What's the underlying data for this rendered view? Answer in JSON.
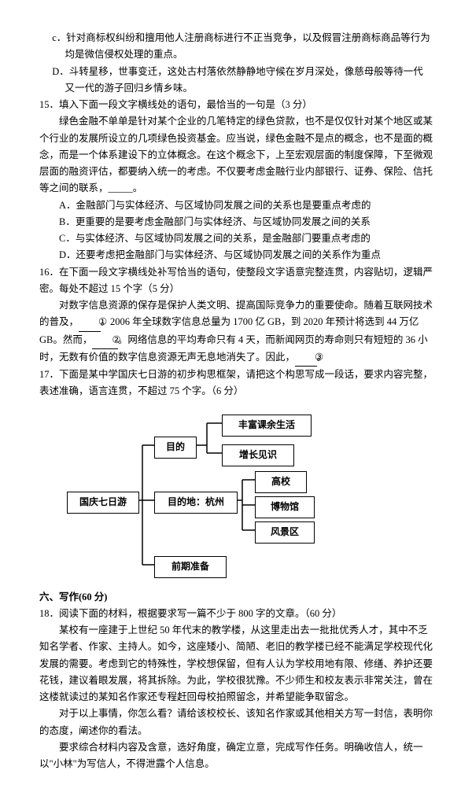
{
  "q14": {
    "c": "c．针对商标权纠纷和擅用他人注册商标进行不正当竞争，以及假冒注册商标商品等行为均是微信侵权处理的重点。",
    "d": "D．斗转星移，世事变迁，这处古村落依然静静地守候在岁月深处，像慈母般等待一代又一代的游子回归乡情乡味。"
  },
  "q15": {
    "stem": "15．填入下面一段文字横线处的语句，最恰当的一句是（3 分）",
    "para": "绿色金融不单单是针对某个企业的几笔特定的绿色贷款，也不是仅仅针对某个地区或某个行业的发展所设立的几项绿色投资基金。应当说，绿色金融不是点的概念，也不是面的概念，而是一个体系建设下的立体概念。在这个概念下，上至宏观层面的制度保障，下至微观层面的融资评估，都要纳入统一的考虑。不仅要考虑金融行业内部银行、证券、保险、信托等之间的联系，_____。",
    "a": "A．金融部门与实体经济、与区域协同发展之间的关系也是要重点考虑的",
    "b": "B．更重要的是要考虑金融部门与实体经济、与区域协同发展之间的关系",
    "c": "C．与实体经济、与区域协同发展之间的关系，是金融部门要重点考虑的",
    "d": "D．还要考虑把金融部门与实体经济、与区域协同发展之间的关系作为重点"
  },
  "q16": {
    "stem": "16．在下面一段文字横线处补写恰当的语句，使整段文字语意完整连贯，内容贴切，逻辑严密。每处不超过 15 个字（5 分）",
    "p1a": "对数字信息资源的保存是保护人类文明、提高国际竞争力的重要使命。随着互联网技术的普及，",
    "p1circ1": "①",
    "p1b": "。2006 年全球数字信息总量为 1700 亿 GB，到 2020 年预计将选到 44 万亿 GB。然而，",
    "p1circ2": "②",
    "p1c": "。网络信息的平均寿命只有 4 天，而新闻网页的寿命则只有短短的 36 小时，无数有价值的数字信息资源无声无息地消失了。因此，",
    "p1circ3": "③",
    "p1d": "。"
  },
  "q17": {
    "stem": "17．下面是某中学国庆七日游的初步构思框架，请把这个构思写成一段话，要求内容完整，表述准确，语言连贯，不超过 75 个字。（6 分）"
  },
  "diagram": {
    "main": "国庆七日游",
    "purpose": "目的",
    "n1": "丰富课余生活",
    "n2": "增长见识",
    "dest": "目的地：杭州",
    "n3": "高校",
    "n4": "博物馆",
    "n5": "风景区",
    "prep": "前期准备",
    "pos": {
      "main": {
        "l": 5,
        "t": 106,
        "w": 78,
        "h": 22
      },
      "purpose": {
        "l": 116,
        "t": 36,
        "w": 40,
        "h": 22
      },
      "n1": {
        "l": 202,
        "t": 8,
        "w": 100,
        "h": 22
      },
      "n2": {
        "l": 202,
        "t": 46,
        "w": 78,
        "h": 22
      },
      "dest": {
        "l": 116,
        "t": 106,
        "w": 92,
        "h": 22
      },
      "n3": {
        "l": 244,
        "t": 80,
        "w": 52,
        "h": 22
      },
      "n4": {
        "l": 244,
        "t": 112,
        "w": 62,
        "h": 22
      },
      "n5": {
        "l": 244,
        "t": 144,
        "w": 62,
        "h": 22
      },
      "prep": {
        "l": 116,
        "t": 188,
        "w": 78,
        "h": 22
      }
    },
    "lines": [
      [
        83,
        117,
        101,
        117
      ],
      [
        101,
        47,
        101,
        199
      ],
      [
        101,
        47,
        116,
        47
      ],
      [
        101,
        117,
        116,
        117
      ],
      [
        101,
        199,
        116,
        199
      ],
      [
        156,
        47,
        183,
        47
      ],
      [
        183,
        19,
        183,
        57
      ],
      [
        183,
        19,
        202,
        19
      ],
      [
        183,
        57,
        202,
        57
      ],
      [
        208,
        117,
        228,
        117
      ],
      [
        228,
        91,
        228,
        155
      ],
      [
        228,
        91,
        244,
        91
      ],
      [
        228,
        123,
        244,
        123
      ],
      [
        228,
        155,
        244,
        155
      ]
    ]
  },
  "sec6": {
    "heading": "六、写作(60 分)",
    "q18": "18．阅读下面的材料，根据要求写一篇不少于 800 字的文章。（60 分）",
    "p1": "某校有一座建于上世纪 50 年代末的教学楼，从这里走出去一批批优秀人才，其中不乏知名学者、作家、主持人。如今，这座矮小、简陋、老旧的教学楼已经不能满足学校现代化发展的需要。考虑到它的特殊性，学校想保留，但有人认为学校用地有限、修缮、养护还要花钱，建议着眼发展，将其拆除。为此，学校很犹豫。不少师生和校友表示非常关注，曾在这楼就读过的某知名作家还专程赶回母校拍照留念，并希望能争取留念。",
    "p2": "对于以上事情，你怎么看？请给该校校长、该知名作家或其他相关方写一封信，表明你的态度，阐述你的看法。",
    "p3": "要求综合材料内容及含意，选好角度，确定立意，完成写作任务。明确收信人，统一以\"小林\"为写信人，不得泄露个人信息。"
  }
}
